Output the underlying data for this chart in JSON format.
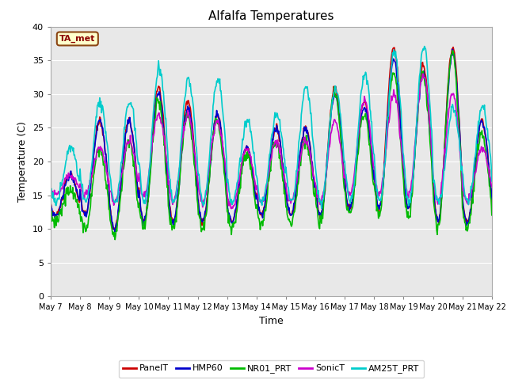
{
  "title": "Alfalfa Temperatures",
  "xlabel": "Time",
  "ylabel": "Temperature (C)",
  "ylim": [
    0,
    40
  ],
  "yticks": [
    0,
    5,
    10,
    15,
    20,
    25,
    30,
    35,
    40
  ],
  "annotation": "TA_met",
  "annotation_color": "#8B0000",
  "annotation_bg": "#FFFFCC",
  "annotation_border": "#8B4513",
  "series": {
    "PanelT": {
      "color": "#CC0000",
      "lw": 1.2
    },
    "HMP60": {
      "color": "#0000CC",
      "lw": 1.2
    },
    "NR01_PRT": {
      "color": "#00BB00",
      "lw": 1.2
    },
    "SonicT": {
      "color": "#CC00CC",
      "lw": 1.2
    },
    "AM25T_PRT": {
      "color": "#00CCCC",
      "lw": 1.2
    }
  },
  "bg_color": "#E8E8E8",
  "fig_bg": "#FFFFFF",
  "grid_color": "#FFFFFF",
  "x_start": 0,
  "x_end": 360,
  "xtick_positions": [
    0,
    24,
    48,
    72,
    96,
    120,
    144,
    168,
    192,
    216,
    240,
    264,
    288,
    312,
    336,
    360
  ],
  "xtick_labels": [
    "May 7",
    "May 8",
    "May 9",
    "May 10",
    "May 11",
    "May 12",
    "May 13",
    "May 14",
    "May 15",
    "May 16",
    "May 17",
    "May 18",
    "May 19",
    "May 20",
    "May 21",
    "May 22"
  ]
}
